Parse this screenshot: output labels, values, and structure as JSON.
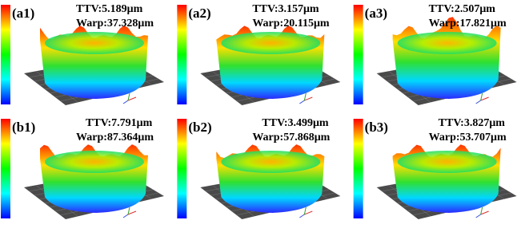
{
  "panels": [
    {
      "label": "(a1)",
      "ttv": "TTV:5.189μm",
      "warp": "Warp:37.328μm"
    },
    {
      "label": "(a2)",
      "ttv": "TTV:3.157μm",
      "warp": "Warp:20.115μm"
    },
    {
      "label": "(a3)",
      "ttv": "TTV:2.507μm",
      "warp": "Warp:17.821μm"
    },
    {
      "label": "(b1)",
      "ttv": "TTV:7.791μm",
      "warp": "Warp:87.364μm"
    },
    {
      "label": "(b2)",
      "ttv": "TTV:3.499μm",
      "warp": "Warp:57.868μm"
    },
    {
      "label": "(b3)",
      "ttv": "TTV:3.827μm",
      "warp": "Warp:53.707μm"
    }
  ]
}
